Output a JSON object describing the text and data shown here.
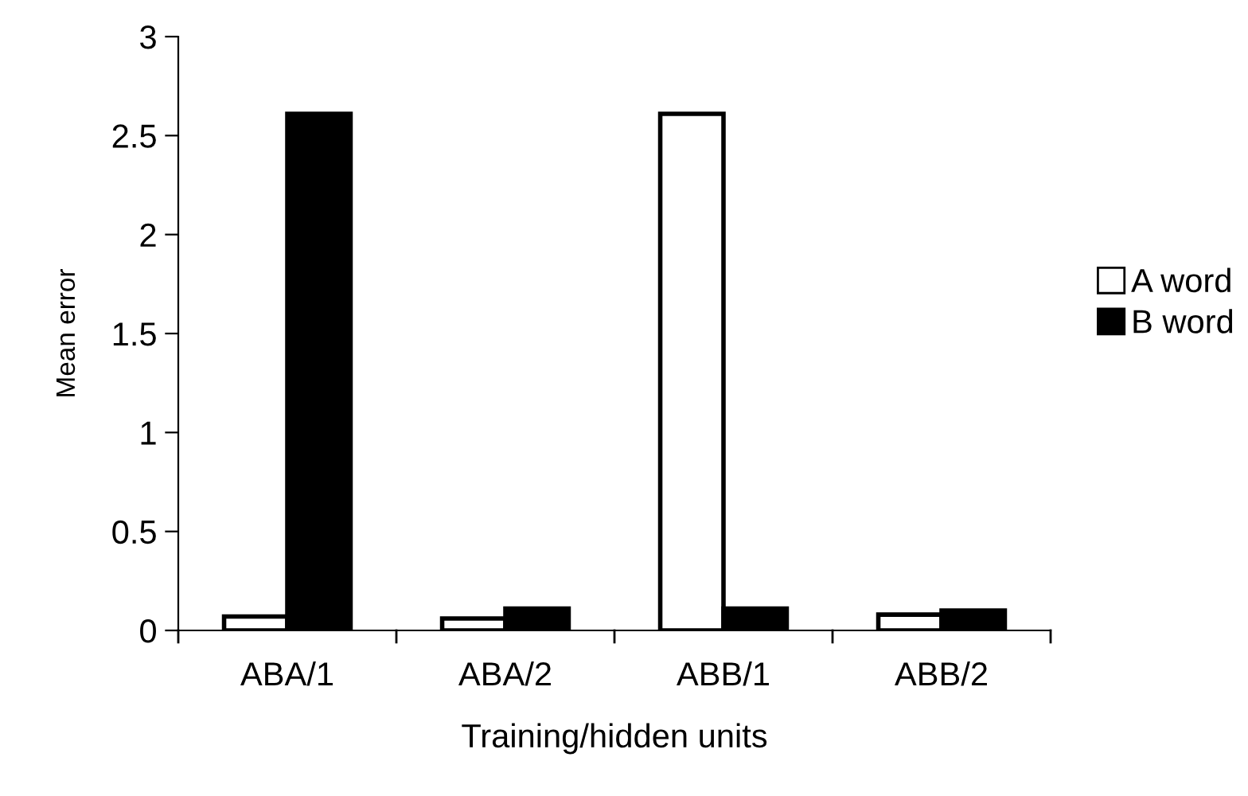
{
  "chart_data": {
    "type": "bar",
    "xlabel": "Training/hidden units",
    "ylabel": "Mean error",
    "categories": [
      "ABA/1",
      "ABA/2",
      "ABB/1",
      "ABB/2"
    ],
    "series": [
      {
        "name": "A word",
        "color": "#ffffff",
        "values": [
          0.07,
          0.06,
          2.61,
          0.08
        ]
      },
      {
        "name": "B word",
        "color": "#000000",
        "values": [
          2.61,
          0.11,
          0.11,
          0.1
        ]
      }
    ],
    "ylim": [
      0,
      3
    ],
    "yticks": [
      0,
      0.5,
      1,
      1.5,
      2,
      2.5,
      3
    ],
    "grid": false,
    "legend": "right"
  }
}
